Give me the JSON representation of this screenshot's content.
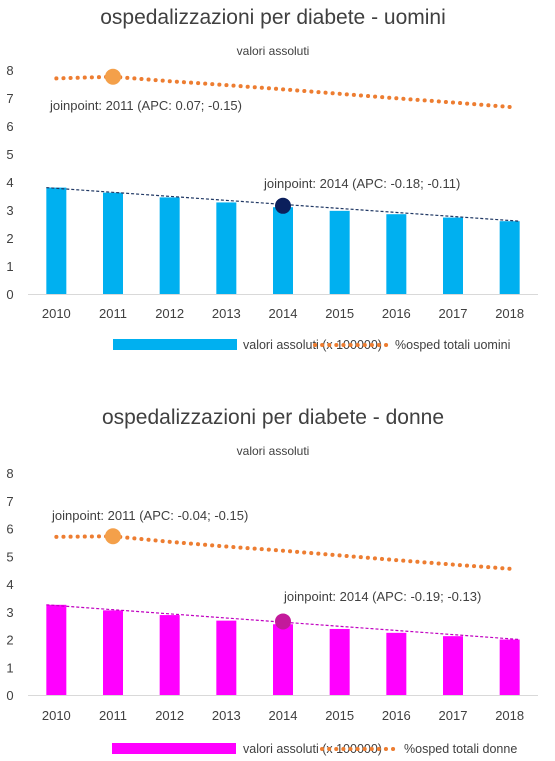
{
  "chart_data": [
    {
      "type": "bar",
      "title": "ospedalizzazioni per diabete - uomini",
      "subtitle": "valori assoluti",
      "categories": [
        "2010",
        "2011",
        "2012",
        "2013",
        "2014",
        "2015",
        "2016",
        "2017",
        "2018"
      ],
      "ylim": [
        0,
        8
      ],
      "yticks": [
        "0",
        "1",
        "2",
        "3",
        "4",
        "5",
        "6",
        "7",
        "8"
      ],
      "grid": false,
      "legend_position": "bottom",
      "series": [
        {
          "name": "valori assoluti (x 100000)",
          "kind": "bar",
          "color": "#00b0f0",
          "values": [
            3.8,
            3.62,
            3.45,
            3.27,
            3.1,
            2.97,
            2.85,
            2.73,
            2.6
          ]
        },
        {
          "name": "%osped totali uomini",
          "kind": "dotted-line",
          "color": "#ed7d31",
          "values": [
            7.7,
            7.76,
            7.6,
            7.46,
            7.31,
            7.15,
            6.99,
            6.84,
            6.68
          ]
        }
      ],
      "bar_trend": {
        "kind": "dashed-line",
        "color": "#203864",
        "values": [
          3.8,
          2.6
        ]
      },
      "markers": [
        {
          "series": "%osped totali uomini",
          "x": "2011",
          "y": 7.76,
          "color": "#f4a04a"
        },
        {
          "series": "valori assoluti (x 100000)",
          "x": "2014",
          "y": 3.15,
          "color": "#0b1f5c"
        }
      ],
      "annotations": [
        {
          "text": "joinpoint: 2011 (APC: 0.07; -0.15)"
        },
        {
          "text": "joinpoint: 2014 (APC: -0.18; -0.11)"
        }
      ]
    },
    {
      "type": "bar",
      "title": "ospedalizzazioni per diabete - donne",
      "subtitle": "valori assoluti",
      "categories": [
        "2010",
        "2011",
        "2012",
        "2013",
        "2014",
        "2015",
        "2016",
        "2017",
        "2018"
      ],
      "ylim": [
        0,
        8
      ],
      "yticks": [
        "0",
        "1",
        "2",
        "3",
        "4",
        "5",
        "6",
        "7",
        "8"
      ],
      "grid": false,
      "legend_position": "bottom",
      "series": [
        {
          "name": "valori assoluti (x 100000)",
          "kind": "bar",
          "color": "#ff00ff",
          "values": [
            3.25,
            3.05,
            2.88,
            2.68,
            2.55,
            2.38,
            2.24,
            2.12,
            2.0
          ]
        },
        {
          "name": "%osped totali donne",
          "kind": "dotted-line",
          "color": "#ed7d31",
          "values": [
            5.7,
            5.72,
            5.52,
            5.35,
            5.2,
            5.03,
            4.86,
            4.7,
            4.55
          ]
        }
      ],
      "bar_trend": {
        "kind": "dashed-line",
        "color": "#c000c0",
        "values": [
          3.25,
          2.0
        ]
      },
      "markers": [
        {
          "series": "%osped totali donne",
          "x": "2011",
          "y": 5.72,
          "color": "#f4a04a"
        },
        {
          "series": "valori assoluti (x 100000)",
          "x": "2014",
          "y": 2.65,
          "color": "#c31a9b"
        }
      ],
      "annotations": [
        {
          "text": "joinpoint: 2011 (APC: -0.04; -0.15)"
        },
        {
          "text": "joinpoint: 2014 (APC: -0.19; -0.13)"
        }
      ]
    }
  ]
}
